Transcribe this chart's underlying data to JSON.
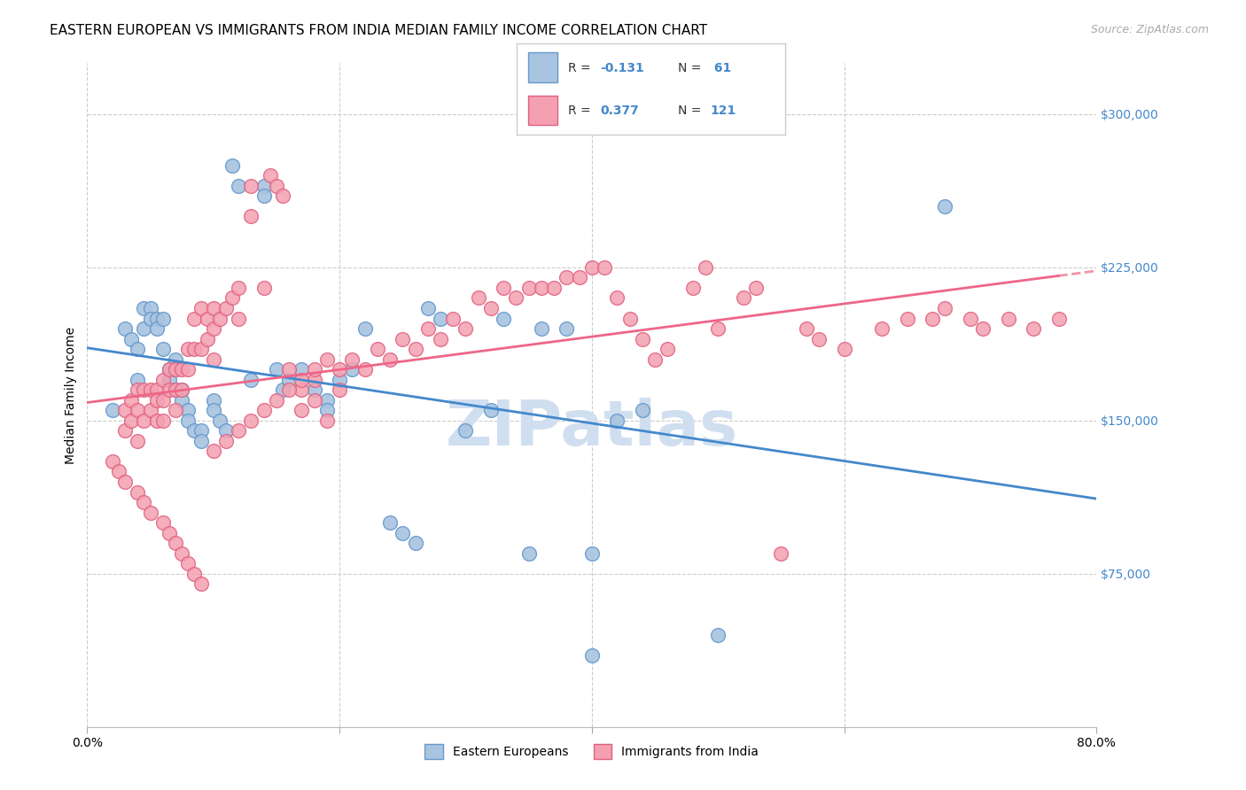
{
  "title": "EASTERN EUROPEAN VS IMMIGRANTS FROM INDIA MEDIAN FAMILY INCOME CORRELATION CHART",
  "source": "Source: ZipAtlas.com",
  "ylabel": "Median Family Income",
  "ytick_values": [
    75000,
    150000,
    225000,
    300000
  ],
  "ymin": 0,
  "ymax": 325000,
  "xmin": 0.0,
  "xmax": 0.8,
  "eastern_color": "#a8c4e0",
  "india_color": "#f4a0b0",
  "eastern_edge": "#6699cc",
  "india_edge": "#e06080",
  "trendline_eastern_color": "#4488cc",
  "trendline_india_color": "#ee6688",
  "background_color": "#ffffff",
  "watermark_text": "ZIPatlas",
  "watermark_color": "#d0dff0",
  "title_fontsize": 11,
  "axis_label_fontsize": 10,
  "tick_fontsize": 10,
  "source_fontsize": 9,
  "eastern_x": [
    0.02,
    0.03,
    0.035,
    0.04,
    0.04,
    0.045,
    0.045,
    0.05,
    0.05,
    0.055,
    0.055,
    0.06,
    0.06,
    0.065,
    0.065,
    0.07,
    0.07,
    0.07,
    0.075,
    0.075,
    0.08,
    0.08,
    0.085,
    0.09,
    0.09,
    0.1,
    0.1,
    0.105,
    0.11,
    0.115,
    0.12,
    0.13,
    0.14,
    0.14,
    0.15,
    0.155,
    0.16,
    0.17,
    0.18,
    0.19,
    0.19,
    0.2,
    0.21,
    0.22,
    0.24,
    0.25,
    0.26,
    0.27,
    0.28,
    0.3,
    0.32,
    0.33,
    0.35,
    0.36,
    0.38,
    0.4,
    0.42,
    0.44,
    0.5,
    0.68,
    0.4
  ],
  "eastern_y": [
    155000,
    195000,
    190000,
    185000,
    170000,
    205000,
    195000,
    205000,
    200000,
    200000,
    195000,
    200000,
    185000,
    175000,
    170000,
    180000,
    175000,
    165000,
    165000,
    160000,
    155000,
    150000,
    145000,
    145000,
    140000,
    160000,
    155000,
    150000,
    145000,
    275000,
    265000,
    170000,
    265000,
    260000,
    175000,
    165000,
    170000,
    175000,
    165000,
    160000,
    155000,
    170000,
    175000,
    195000,
    100000,
    95000,
    90000,
    205000,
    200000,
    145000,
    155000,
    200000,
    85000,
    195000,
    195000,
    85000,
    150000,
    155000,
    45000,
    255000,
    35000
  ],
  "india_x": [
    0.02,
    0.025,
    0.03,
    0.03,
    0.035,
    0.035,
    0.04,
    0.04,
    0.04,
    0.045,
    0.045,
    0.05,
    0.05,
    0.055,
    0.055,
    0.055,
    0.06,
    0.06,
    0.06,
    0.065,
    0.065,
    0.07,
    0.07,
    0.07,
    0.075,
    0.075,
    0.08,
    0.08,
    0.085,
    0.085,
    0.09,
    0.09,
    0.095,
    0.095,
    0.1,
    0.1,
    0.1,
    0.105,
    0.11,
    0.115,
    0.12,
    0.12,
    0.13,
    0.13,
    0.14,
    0.145,
    0.15,
    0.155,
    0.16,
    0.17,
    0.17,
    0.18,
    0.18,
    0.19,
    0.2,
    0.2,
    0.21,
    0.22,
    0.23,
    0.24,
    0.25,
    0.26,
    0.27,
    0.28,
    0.29,
    0.3,
    0.31,
    0.32,
    0.33,
    0.34,
    0.35,
    0.36,
    0.37,
    0.38,
    0.39,
    0.4,
    0.41,
    0.42,
    0.43,
    0.44,
    0.45,
    0.46,
    0.48,
    0.49,
    0.5,
    0.52,
    0.53,
    0.55,
    0.57,
    0.58,
    0.6,
    0.63,
    0.65,
    0.67,
    0.68,
    0.7,
    0.71,
    0.73,
    0.75,
    0.77,
    0.03,
    0.04,
    0.045,
    0.05,
    0.06,
    0.065,
    0.07,
    0.075,
    0.08,
    0.085,
    0.09,
    0.1,
    0.11,
    0.12,
    0.13,
    0.14,
    0.15,
    0.16,
    0.17,
    0.18,
    0.19
  ],
  "india_y": [
    130000,
    125000,
    155000,
    145000,
    160000,
    150000,
    165000,
    155000,
    140000,
    165000,
    150000,
    165000,
    155000,
    165000,
    160000,
    150000,
    170000,
    160000,
    150000,
    175000,
    165000,
    175000,
    165000,
    155000,
    175000,
    165000,
    185000,
    175000,
    200000,
    185000,
    205000,
    185000,
    200000,
    190000,
    205000,
    195000,
    180000,
    200000,
    205000,
    210000,
    215000,
    200000,
    265000,
    250000,
    215000,
    270000,
    265000,
    260000,
    175000,
    165000,
    155000,
    170000,
    160000,
    150000,
    175000,
    165000,
    180000,
    175000,
    185000,
    180000,
    190000,
    185000,
    195000,
    190000,
    200000,
    195000,
    210000,
    205000,
    215000,
    210000,
    215000,
    215000,
    215000,
    220000,
    220000,
    225000,
    225000,
    210000,
    200000,
    190000,
    180000,
    185000,
    215000,
    225000,
    195000,
    210000,
    215000,
    85000,
    195000,
    190000,
    185000,
    195000,
    200000,
    200000,
    205000,
    200000,
    195000,
    200000,
    195000,
    200000,
    120000,
    115000,
    110000,
    105000,
    100000,
    95000,
    90000,
    85000,
    80000,
    75000,
    70000,
    135000,
    140000,
    145000,
    150000,
    155000,
    160000,
    165000,
    170000,
    175000,
    180000
  ]
}
